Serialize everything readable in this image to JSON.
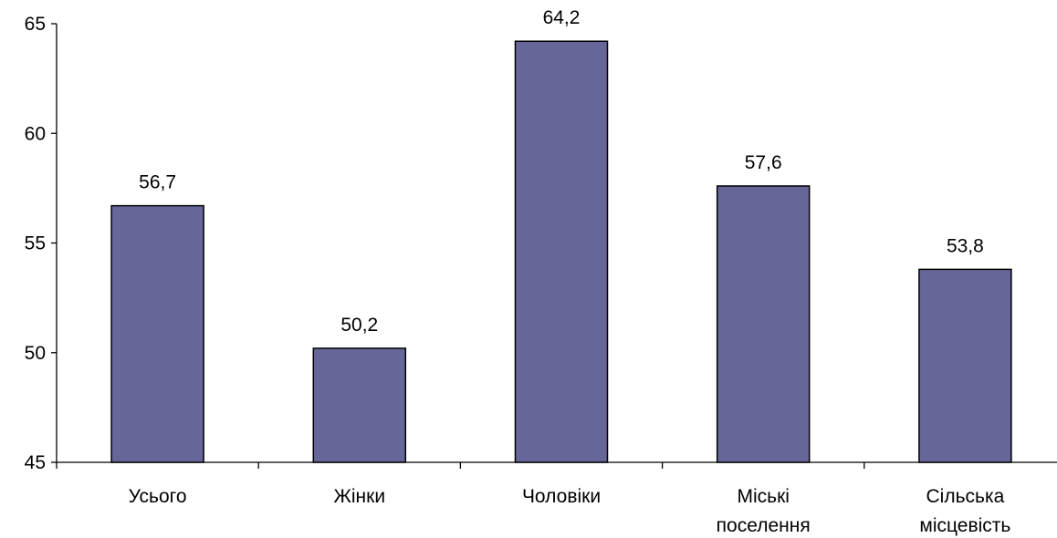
{
  "chart_data": {
    "type": "bar",
    "categories": [
      [
        "Усього"
      ],
      [
        "Жінки"
      ],
      [
        "Чоловіки"
      ],
      [
        "Міські",
        "поселення"
      ],
      [
        "Сільська",
        "місцевість"
      ]
    ],
    "values": [
      56.7,
      50.2,
      64.2,
      57.6,
      53.8
    ],
    "data_labels": [
      "56,7",
      "50,2",
      "64,2",
      "57,6",
      "53,8"
    ],
    "title": "",
    "xlabel": "",
    "ylabel": "",
    "ylim": [
      45,
      65
    ],
    "yticks": [
      45,
      50,
      55,
      60,
      65
    ],
    "ytick_labels": [
      "45",
      "50",
      "55",
      "60",
      "65"
    ],
    "grid": false,
    "legend": "none",
    "bar_color": "#666699",
    "bar_edge_color": "#000000"
  }
}
